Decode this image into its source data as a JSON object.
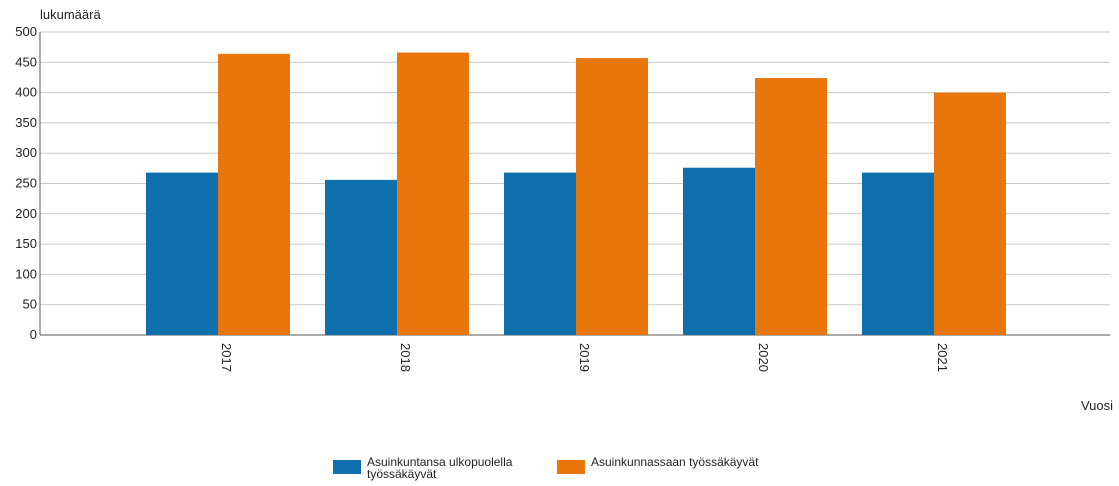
{
  "chart_data": {
    "type": "bar",
    "categories": [
      "2017",
      "2018",
      "2019",
      "2020",
      "2021"
    ],
    "series": [
      {
        "name": "Asuinkuntansa ulkopuolella työssäkäyvät",
        "values": [
          268,
          256,
          268,
          276,
          268
        ],
        "color": "#0f6fad"
      },
      {
        "name": "Asuinkunnassaan työssäkäyvät",
        "values": [
          464,
          466,
          457,
          424,
          400
        ],
        "color": "#e8760a"
      }
    ],
    "title": "",
    "xlabel": "Vuosi",
    "ylabel": "lukumäärä",
    "ylim": [
      0,
      500
    ],
    "yticks": [
      0,
      50,
      100,
      150,
      200,
      250,
      300,
      350,
      400,
      450,
      500
    ],
    "grid": true,
    "legend_position": "bottom"
  }
}
